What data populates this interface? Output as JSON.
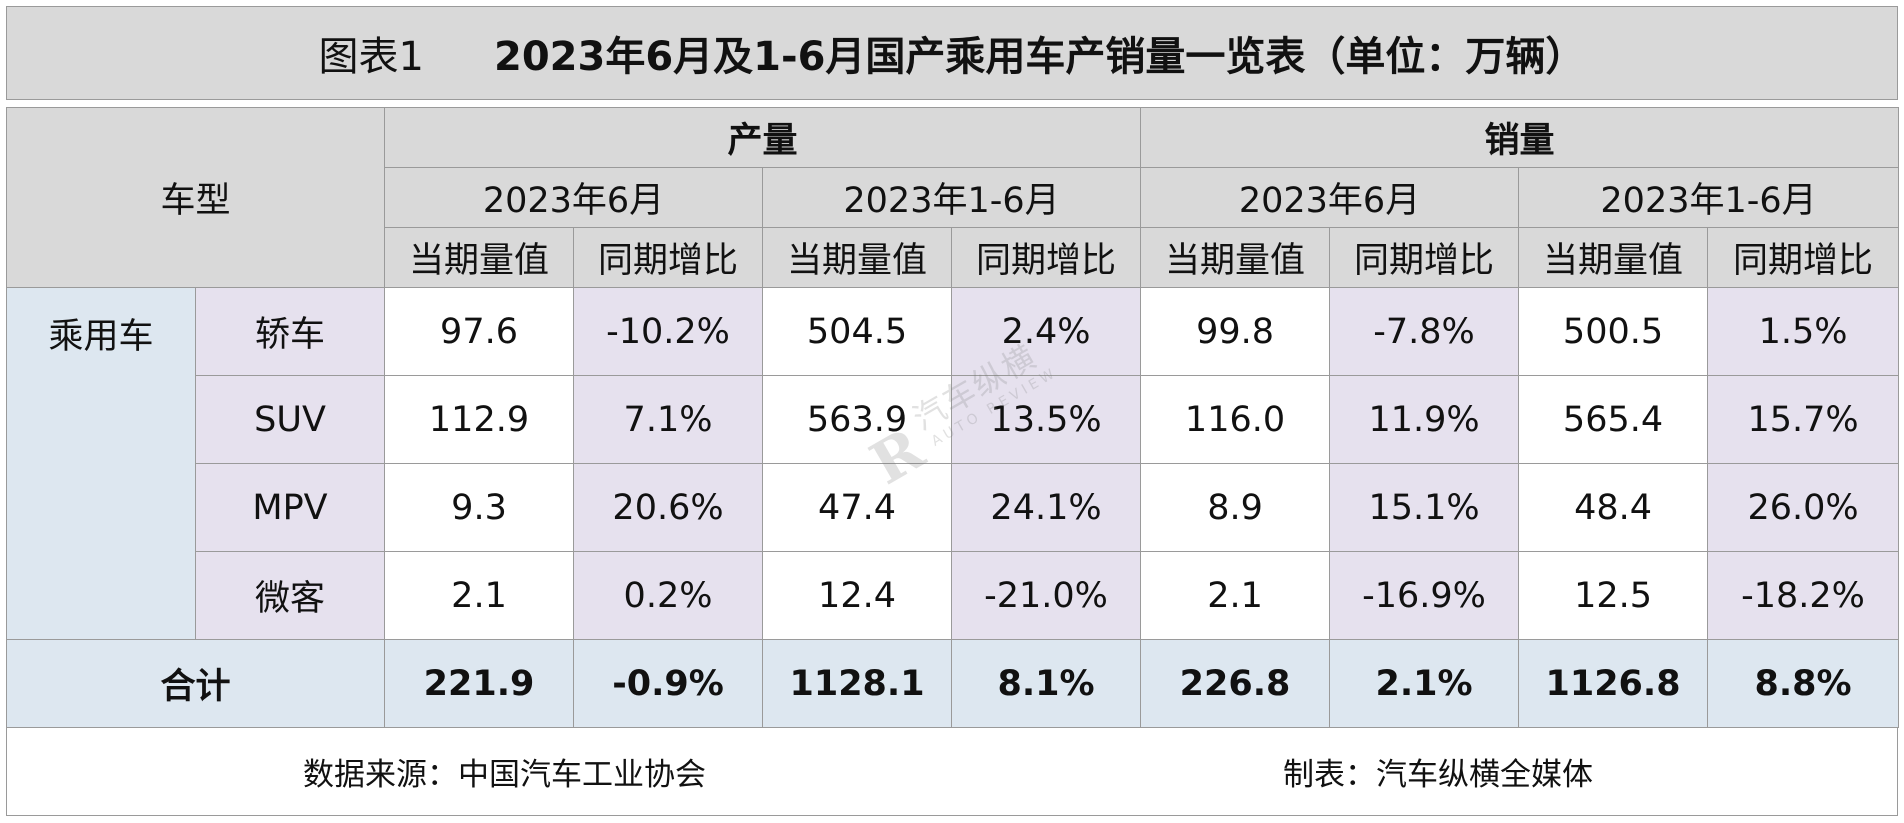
{
  "title": {
    "label": "图表1",
    "text": "2023年6月及1-6月国产乘用车产销量一览表（单位：万辆）"
  },
  "header": {
    "vehicle_type": "车型",
    "production": "产量",
    "sales": "销量",
    "period_month": "2023年6月",
    "period_ytd": "2023年1-6月",
    "current_value": "当期量值",
    "yoy_change": "同期增比"
  },
  "category": "乘用车",
  "rows": [
    {
      "type": "轿车",
      "prod_m": "97.6",
      "prod_m_yoy": "-10.2%",
      "prod_ytd": "504.5",
      "prod_ytd_yoy": "2.4%",
      "sale_m": "99.8",
      "sale_m_yoy": "-7.8%",
      "sale_ytd": "500.5",
      "sale_ytd_yoy": "1.5%"
    },
    {
      "type": "SUV",
      "prod_m": "112.9",
      "prod_m_yoy": "7.1%",
      "prod_ytd": "563.9",
      "prod_ytd_yoy": "13.5%",
      "sale_m": "116.0",
      "sale_m_yoy": "11.9%",
      "sale_ytd": "565.4",
      "sale_ytd_yoy": "15.7%"
    },
    {
      "type": "MPV",
      "prod_m": "9.3",
      "prod_m_yoy": "20.6%",
      "prod_ytd": "47.4",
      "prod_ytd_yoy": "24.1%",
      "sale_m": "8.9",
      "sale_m_yoy": "15.1%",
      "sale_ytd": "48.4",
      "sale_ytd_yoy": "26.0%"
    },
    {
      "type": "微客",
      "prod_m": "2.1",
      "prod_m_yoy": "0.2%",
      "prod_ytd": "12.4",
      "prod_ytd_yoy": "-21.0%",
      "sale_m": "2.1",
      "sale_m_yoy": "-16.9%",
      "sale_ytd": "12.5",
      "sale_ytd_yoy": "-18.2%"
    }
  ],
  "total": {
    "label": "合计",
    "prod_m": "221.9",
    "prod_m_yoy": "-0.9%",
    "prod_ytd": "1128.1",
    "prod_ytd_yoy": "8.1%",
    "sale_m": "226.8",
    "sale_m_yoy": "2.1%",
    "sale_ytd": "1126.8",
    "sale_ytd_yoy": "8.8%"
  },
  "footer": {
    "source": "数据来源：中国汽车工业协会",
    "maker": "制表：汽车纵横全媒体"
  },
  "watermark": {
    "logo": "汽车纵横",
    "sub": "AUTO REVIEW"
  },
  "colors": {
    "header_bg": "#d9d9d9",
    "category_bg": "#dde7f0",
    "subtype_bg": "#e6e1ee",
    "border": "#9a9a9a"
  }
}
